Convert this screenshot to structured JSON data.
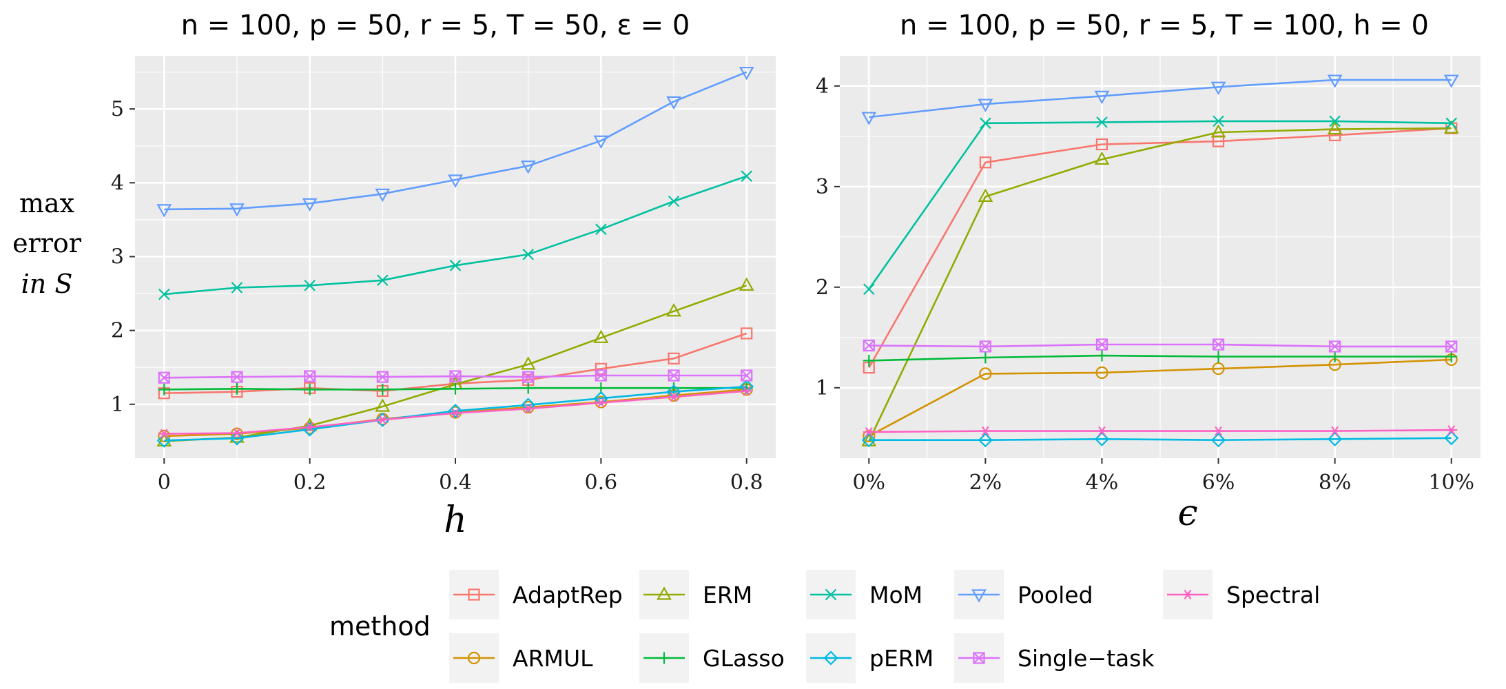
{
  "chart_data": [
    {
      "type": "line",
      "title": "n = 100, p = 50, r = 5, T = 50, ε = 0",
      "xlabel": "h",
      "ylabel": [
        "max",
        "error",
        "in S"
      ],
      "x": [
        0,
        0.1,
        0.2,
        0.3,
        0.4,
        0.5,
        0.6,
        0.7,
        0.8
      ],
      "x_ticks": [
        0,
        0.2,
        0.4,
        0.6,
        0.8
      ],
      "x_tick_labels": [
        "0",
        "0.2",
        "0.4",
        "0.6",
        "0.8"
      ],
      "xlim": [
        -0.04,
        0.84
      ],
      "y_ticks": [
        1,
        2,
        3,
        4,
        5
      ],
      "y_tick_labels": [
        "1",
        "2",
        "3",
        "4",
        "5"
      ],
      "ylim": [
        0.27,
        5.72
      ],
      "grid": true,
      "series": [
        {
          "name": "AdaptRep",
          "values": [
            1.15,
            1.17,
            1.22,
            1.18,
            1.28,
            1.33,
            1.48,
            1.62,
            1.96
          ]
        },
        {
          "name": "ARMUL",
          "values": [
            0.57,
            0.6,
            0.68,
            0.8,
            0.89,
            0.96,
            1.03,
            1.12,
            1.2
          ]
        },
        {
          "name": "ERM",
          "values": [
            0.5,
            0.55,
            0.71,
            0.97,
            1.27,
            1.54,
            1.9,
            2.26,
            2.61
          ]
        },
        {
          "name": "GLasso",
          "values": [
            1.2,
            1.21,
            1.2,
            1.2,
            1.21,
            1.22,
            1.22,
            1.22,
            1.22
          ]
        },
        {
          "name": "MoM",
          "values": [
            2.49,
            2.58,
            2.61,
            2.68,
            2.88,
            3.03,
            3.37,
            3.75,
            4.09
          ]
        },
        {
          "name": "pERM",
          "values": [
            0.51,
            0.54,
            0.66,
            0.79,
            0.91,
            0.99,
            1.08,
            1.17,
            1.24
          ]
        },
        {
          "name": "Pooled",
          "values": [
            3.64,
            3.65,
            3.72,
            3.85,
            4.04,
            4.23,
            4.57,
            5.1,
            5.5
          ]
        },
        {
          "name": "Single−task",
          "values": [
            1.36,
            1.37,
            1.38,
            1.37,
            1.38,
            1.37,
            1.39,
            1.39,
            1.39
          ]
        },
        {
          "name": "Spectral",
          "values": [
            0.6,
            0.61,
            0.69,
            0.79,
            0.88,
            0.94,
            1.02,
            1.1,
            1.18
          ]
        }
      ]
    },
    {
      "type": "line",
      "title": "n = 100, p = 50, r = 5, T = 100, h = 0",
      "xlabel": "ϵ",
      "ylabel": "",
      "x": [
        0,
        2,
        4,
        6,
        8,
        10
      ],
      "x_ticks": [
        0,
        2,
        4,
        6,
        8,
        10
      ],
      "x_tick_labels": [
        "0%",
        "2%",
        "4%",
        "6%",
        "8%",
        "10%"
      ],
      "xlim": [
        -0.5,
        10.5
      ],
      "y_ticks": [
        1,
        2,
        3,
        4
      ],
      "y_tick_labels": [
        "1",
        "2",
        "3",
        "4"
      ],
      "ylim": [
        0.3,
        4.3
      ],
      "grid": true,
      "series": [
        {
          "name": "AdaptRep",
          "values": [
            1.2,
            3.24,
            3.42,
            3.45,
            3.51,
            3.58
          ]
        },
        {
          "name": "ARMUL",
          "values": [
            0.52,
            1.14,
            1.15,
            1.19,
            1.23,
            1.28
          ]
        },
        {
          "name": "ERM",
          "values": [
            0.47,
            2.9,
            3.27,
            3.54,
            3.57,
            3.58
          ]
        },
        {
          "name": "GLasso",
          "values": [
            1.27,
            1.3,
            1.32,
            1.31,
            1.31,
            1.31
          ]
        },
        {
          "name": "MoM",
          "values": [
            1.98,
            3.63,
            3.64,
            3.65,
            3.65,
            3.63
          ]
        },
        {
          "name": "pERM",
          "values": [
            0.48,
            0.48,
            0.49,
            0.48,
            0.49,
            0.5
          ]
        },
        {
          "name": "Pooled",
          "values": [
            3.69,
            3.82,
            3.9,
            3.99,
            4.06,
            4.06
          ]
        },
        {
          "name": "Single−task",
          "values": [
            1.42,
            1.41,
            1.43,
            1.43,
            1.41,
            1.41
          ]
        },
        {
          "name": "Spectral",
          "values": [
            0.56,
            0.57,
            0.57,
            0.57,
            0.57,
            0.58
          ]
        }
      ]
    }
  ],
  "legend": {
    "title": "method",
    "placement": "bottom",
    "items": [
      {
        "name": "AdaptRep",
        "color": "#F8766D",
        "marker": "square"
      },
      {
        "name": "ARMUL",
        "color": "#D39200",
        "marker": "circle"
      },
      {
        "name": "ERM",
        "color": "#93AA00",
        "marker": "triangle-up"
      },
      {
        "name": "GLasso",
        "color": "#00BA38",
        "marker": "plus"
      },
      {
        "name": "MoM",
        "color": "#00C19F",
        "marker": "cross"
      },
      {
        "name": "pERM",
        "color": "#00B9E3",
        "marker": "diamond"
      },
      {
        "name": "Pooled",
        "color": "#619CFF",
        "marker": "triangle-down"
      },
      {
        "name": "Single−task",
        "color": "#DB72FB",
        "marker": "square-cross"
      },
      {
        "name": "Spectral",
        "color": "#FF61C3",
        "marker": "asterisk"
      }
    ]
  },
  "colors": {
    "panel_background": "#EBEBEB",
    "grid_major": "#FFFFFF"
  }
}
